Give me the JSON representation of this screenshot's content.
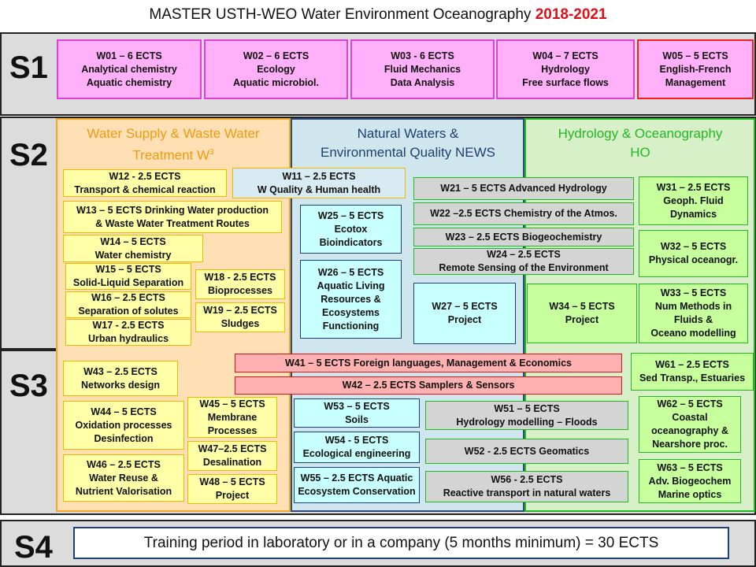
{
  "title": {
    "prefix": "MASTER USTH-WEO Water Environment Oceanography ",
    "years": "2018-2021"
  },
  "semesters": {
    "s1": "S1",
    "s2": "S2",
    "s3": "S3",
    "s4": "S4"
  },
  "areas": {
    "w3": {
      "line1": "Water Supply & Waste Water",
      "line2": "Treatment W",
      "sup": "3"
    },
    "news": {
      "line1": "Natural Waters &",
      "line2": "Environmental Quality  NEWS"
    },
    "ho": {
      "line1": "Hydrology & Oceanography",
      "line2": "HO"
    }
  },
  "s1_modules": [
    {
      "id": "w01",
      "lines": [
        "W01 – 6 ECTS",
        "Analytical chemistry",
        "Aquatic chemistry"
      ]
    },
    {
      "id": "w02",
      "lines": [
        "W02 – 6 ECTS",
        "Ecology",
        "Aquatic microbiol."
      ]
    },
    {
      "id": "w03",
      "lines": [
        "W03 - 6 ECTS",
        "Fluid Mechanics",
        "Data Analysis"
      ]
    },
    {
      "id": "w04",
      "lines": [
        "W04 – 7 ECTS",
        "Hydrology",
        "Free surface flows"
      ]
    },
    {
      "id": "w05",
      "lines": [
        "W05 – 5 ECTS",
        "English-French",
        "Management"
      ]
    }
  ],
  "modules": {
    "w12": [
      "W12 - 2.5 ECTS",
      "Transport & chemical reaction"
    ],
    "w11": [
      "W11 – 2.5 ECTS",
      "W Quality & Human health"
    ],
    "w13": [
      "W13 – 5 ECTS  Drinking Water production",
      "& Waste Water Treatment Routes"
    ],
    "w14": [
      "W14 – 5 ECTS",
      "Water chemistry"
    ],
    "w15": [
      "W15 – 5 ECTS",
      "Solid-Liquid Separation"
    ],
    "w16": [
      "W16 – 2.5 ECTS",
      "Separation of solutes"
    ],
    "w17": [
      "W17 - 2.5 ECTS",
      "Urban hydraulics"
    ],
    "w18": [
      "W18 - 2.5 ECTS",
      "Bioprocesses"
    ],
    "w19": [
      "W19 – 2.5 ECTS",
      "Sludges"
    ],
    "w25": [
      "W25 – 5 ECTS",
      "Ecotox",
      "Bioindicators"
    ],
    "w26": [
      "W26 – 5 ECTS",
      "Aquatic Living",
      "Resources &",
      "Ecosystems",
      "Functioning"
    ],
    "w21": [
      "W21 – 5 ECTS Advanced Hydrology"
    ],
    "w22": [
      "W22 –2.5 ECTS  Chemistry of the  Atmos."
    ],
    "w23": [
      "W23 – 2.5 ECTS Biogeochemistry"
    ],
    "w24": [
      "W24 – 2.5 ECTS",
      "Remote Sensing of the Environment"
    ],
    "w27": [
      "W27 – 5 ECTS",
      "Project"
    ],
    "w31": [
      "W31 – 2.5 ECTS",
      "Geoph. Fluid",
      "Dynamics"
    ],
    "w32": [
      "W32 – 5 ECTS",
      "Physical oceanogr."
    ],
    "w34": [
      "W34 – 5 ECTS",
      "Project"
    ],
    "w33": [
      "W33 – 5 ECTS",
      "Num Methods in",
      "Fluids &",
      "Oceano modelling"
    ],
    "w41": [
      "W41 – 5 ECTS  Foreign languages, Management & Economics"
    ],
    "w42": [
      "W42 – 2.5 ECTS Samplers & Sensors"
    ],
    "w61": [
      "W61 – 2.5 ECTS",
      "Sed Transp., Estuaries"
    ],
    "w43": [
      "W43 – 2.5 ECTS",
      "Networks design"
    ],
    "w44": [
      "W44 – 5 ECTS",
      "Oxidation processes",
      "Desinfection"
    ],
    "w45": [
      "W45 – 5 ECTS",
      "Membrane",
      "Processes"
    ],
    "w47": [
      "W47–2.5 ECTS",
      "Desalination"
    ],
    "w46": [
      "W46 – 2.5 ECTS",
      "Water Reuse &",
      "Nutrient Valorisation"
    ],
    "w48": [
      "W48 – 5 ECTS",
      "Project"
    ],
    "w53": [
      "W53 – 5 ECTS",
      "Soils"
    ],
    "w54": [
      "W54 - 5 ECTS",
      "Ecological engineering"
    ],
    "w55": [
      "W55 – 2.5 ECTS Aquatic",
      "Ecosystem Conservation"
    ],
    "w51": [
      "W51 – 5 ECTS",
      "Hydrology modelling – Floods"
    ],
    "w52": [
      "W52 - 2.5 ECTS Geomatics"
    ],
    "w56": [
      "W56 - 2.5 ECTS",
      "Reactive transport in natural waters"
    ],
    "w62": [
      "W62 – 5 ECTS",
      "Coastal",
      "oceanography &",
      "Nearshore proc."
    ],
    "w63": [
      "W63 – 5 ECTS",
      "Adv. Biogeochem",
      "Marine optics"
    ]
  },
  "s4_text": "Training period in laboratory or in a company (5 months minimum) = 30 ECTS"
}
